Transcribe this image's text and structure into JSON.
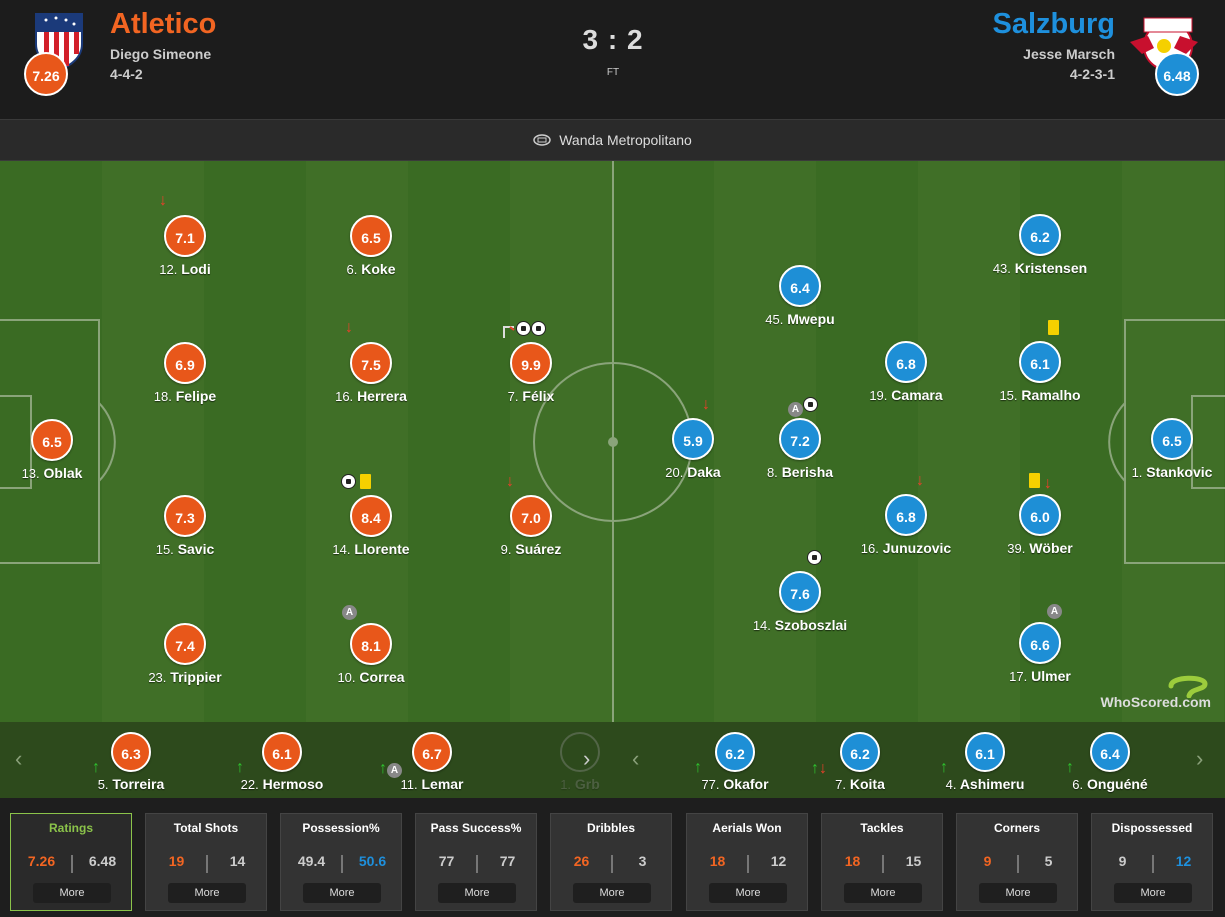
{
  "match": {
    "home": {
      "name": "Atletico",
      "manager": "Diego Simeone",
      "formation": "4-4-2",
      "rating": "7.26"
    },
    "away": {
      "name": "Salzburg",
      "manager": "Jesse Marsch",
      "formation": "4-2-3-1",
      "rating": "6.48"
    },
    "score": "3 : 2",
    "status": "FT",
    "venue": "Wanda Metropolitano"
  },
  "colors": {
    "home": "#e8571a",
    "away": "#1e8fd6",
    "pitch": "#3a6b23"
  },
  "home_players": [
    {
      "num": "13.",
      "name": "Oblak",
      "rating": "6.5"
    },
    {
      "num": "12.",
      "name": "Lodi",
      "rating": "7.1"
    },
    {
      "num": "18.",
      "name": "Felipe",
      "rating": "6.9"
    },
    {
      "num": "15.",
      "name": "Savic",
      "rating": "7.3"
    },
    {
      "num": "23.",
      "name": "Trippier",
      "rating": "7.4"
    },
    {
      "num": "6.",
      "name": "Koke",
      "rating": "6.5"
    },
    {
      "num": "16.",
      "name": "Herrera",
      "rating": "7.5"
    },
    {
      "num": "14.",
      "name": "Llorente",
      "rating": "8.4"
    },
    {
      "num": "10.",
      "name": "Correa",
      "rating": "8.1"
    },
    {
      "num": "7.",
      "name": "Félix",
      "rating": "9.9"
    },
    {
      "num": "9.",
      "name": "Suárez",
      "rating": "7.0"
    }
  ],
  "away_players": [
    {
      "num": "1.",
      "name": "Stankovic",
      "rating": "6.5"
    },
    {
      "num": "43.",
      "name": "Kristensen",
      "rating": "6.2"
    },
    {
      "num": "15.",
      "name": "Ramalho",
      "rating": "6.1"
    },
    {
      "num": "39.",
      "name": "Wöber",
      "rating": "6.0"
    },
    {
      "num": "17.",
      "name": "Ulmer",
      "rating": "6.6"
    },
    {
      "num": "19.",
      "name": "Camara",
      "rating": "6.8"
    },
    {
      "num": "16.",
      "name": "Junuzovic",
      "rating": "6.8"
    },
    {
      "num": "45.",
      "name": "Mwepu",
      "rating": "6.4"
    },
    {
      "num": "8.",
      "name": "Berisha",
      "rating": "7.2"
    },
    {
      "num": "14.",
      "name": "Szoboszlai",
      "rating": "7.6"
    },
    {
      "num": "20.",
      "name": "Daka",
      "rating": "5.9"
    }
  ],
  "home_subs": [
    {
      "num": "5.",
      "name": "Torreira",
      "rating": "6.3"
    },
    {
      "num": "22.",
      "name": "Hermoso",
      "rating": "6.1"
    },
    {
      "num": "11.",
      "name": "Lemar",
      "rating": "6.7"
    },
    {
      "num": "1.",
      "name": "Grb",
      "rating": ""
    }
  ],
  "away_subs": [
    {
      "num": "77.",
      "name": "Okafor",
      "rating": "6.2"
    },
    {
      "num": "7.",
      "name": "Koita",
      "rating": "6.2"
    },
    {
      "num": "4.",
      "name": "Ashimeru",
      "rating": "6.1"
    },
    {
      "num": "6.",
      "name": "Onguéné",
      "rating": "6.4"
    }
  ],
  "watermark": "WhoScored.com",
  "stats": [
    {
      "title": "Ratings",
      "home": "7.26",
      "away": "6.48",
      "more": "More"
    },
    {
      "title": "Total Shots",
      "home": "19",
      "away": "14",
      "more": "More"
    },
    {
      "title": "Possession%",
      "home": "49.4",
      "away": "50.6",
      "more": "More"
    },
    {
      "title": "Pass Success%",
      "home": "77",
      "away": "77",
      "more": "More"
    },
    {
      "title": "Dribbles",
      "home": "26",
      "away": "3",
      "more": "More"
    },
    {
      "title": "Aerials Won",
      "home": "18",
      "away": "12",
      "more": "More"
    },
    {
      "title": "Tackles",
      "home": "18",
      "away": "15",
      "more": "More"
    },
    {
      "title": "Corners",
      "home": "9",
      "away": "5",
      "more": "More"
    },
    {
      "title": "Dispossessed",
      "home": "9",
      "away": "12",
      "more": "More"
    }
  ]
}
